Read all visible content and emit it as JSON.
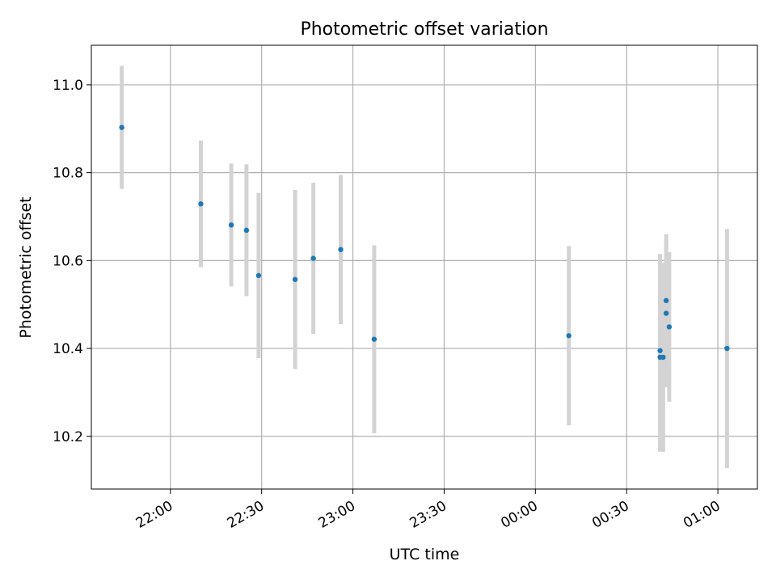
{
  "chart_data": {
    "type": "scatter",
    "title": "Photometric offset variation",
    "xlabel": "UTC time",
    "ylabel": "Photometric offset",
    "x_axis": "time",
    "x_ticks": [
      "22:00",
      "22:30",
      "23:00",
      "23:30",
      "00:00",
      "00:30",
      "01:00"
    ],
    "xlim": [
      "21:34",
      "01:13"
    ],
    "ylim": [
      10.08,
      11.09
    ],
    "y_ticks": [
      "10.2",
      "10.4",
      "10.6",
      "10.8",
      "11.0"
    ],
    "grid": true,
    "marker_color": "#1f77b4",
    "errorbar_color": "#d3d3d3",
    "points": [
      {
        "x": "21:44",
        "y": 10.903,
        "err": 0.14
      },
      {
        "x": "22:10",
        "y": 10.729,
        "err": 0.144
      },
      {
        "x": "22:20",
        "y": 10.681,
        "err": 0.14
      },
      {
        "x": "22:25",
        "y": 10.669,
        "err": 0.15
      },
      {
        "x": "22:29",
        "y": 10.566,
        "err": 0.188
      },
      {
        "x": "22:41",
        "y": 10.557,
        "err": 0.204
      },
      {
        "x": "22:47",
        "y": 10.605,
        "err": 0.172
      },
      {
        "x": "22:56",
        "y": 10.625,
        "err": 0.17
      },
      {
        "x": "23:07",
        "y": 10.421,
        "err": 0.214
      },
      {
        "x": "00:11",
        "y": 10.429,
        "err": 0.204
      },
      {
        "x": "00:41",
        "y": 10.395,
        "err": 0.22
      },
      {
        "x": "00:41",
        "y": 10.38,
        "err": 0.215
      },
      {
        "x": "00:42",
        "y": 10.38,
        "err": 0.215
      },
      {
        "x": "00:43",
        "y": 10.48,
        "err": 0.168
      },
      {
        "x": "00:43",
        "y": 10.509,
        "err": 0.151
      },
      {
        "x": "00:44",
        "y": 10.449,
        "err": 0.17
      },
      {
        "x": "01:03",
        "y": 10.4,
        "err": 0.272
      }
    ]
  }
}
